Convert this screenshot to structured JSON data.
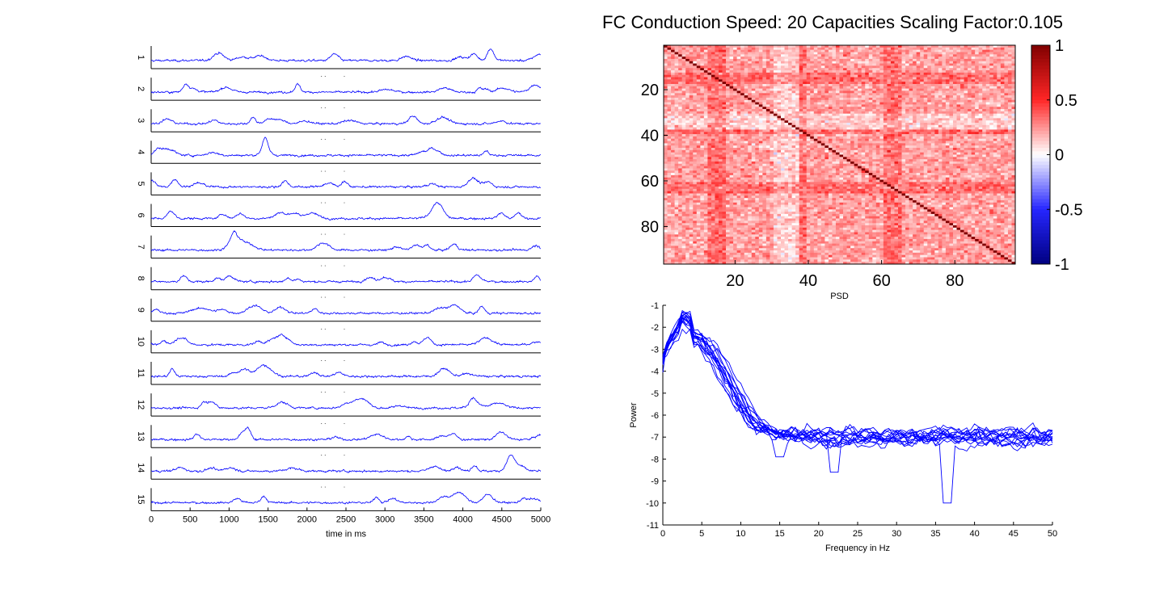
{
  "title": "FC Conduction Speed: 20  Capacities Scaling Factor:0.105",
  "chart_data": [
    {
      "type": "line",
      "name": "timeseries",
      "traces": [
        "1",
        "2",
        "3",
        "4",
        "5",
        "6",
        "7",
        "8",
        "9",
        "10",
        "11",
        "12",
        "13",
        "14",
        "15"
      ],
      "xlim": [
        0,
        5000
      ],
      "xticks": [
        "0",
        "500",
        "1000",
        "1500",
        "2000",
        "2500",
        "3000",
        "3500",
        "4000",
        "4500",
        "5000"
      ],
      "xlabel": "time in ms"
    },
    {
      "type": "heatmap",
      "name": "fc_matrix",
      "size": 96,
      "xticks": [
        "20",
        "40",
        "60",
        "80"
      ],
      "yticks": [
        "20",
        "40",
        "60",
        "80"
      ],
      "xlabel": "PSD",
      "colorbar": {
        "ticks": [
          "1",
          "0.5",
          "0",
          "-0.5",
          "-1"
        ],
        "range": [
          -1,
          1
        ]
      }
    },
    {
      "type": "line",
      "name": "psd",
      "xlim": [
        0,
        50
      ],
      "ylim": [
        -11,
        -1
      ],
      "xticks": [
        "0",
        "5",
        "10",
        "15",
        "20",
        "25",
        "30",
        "35",
        "40",
        "45",
        "50"
      ],
      "yticks": [
        "-1",
        "-2",
        "-3",
        "-4",
        "-5",
        "-6",
        "-7",
        "-8",
        "-9",
        "-10",
        "-11"
      ],
      "xlabel": "Frequency in Hz",
      "ylabel": "Power",
      "n_series": 15,
      "line_color": "#0000ff"
    }
  ]
}
